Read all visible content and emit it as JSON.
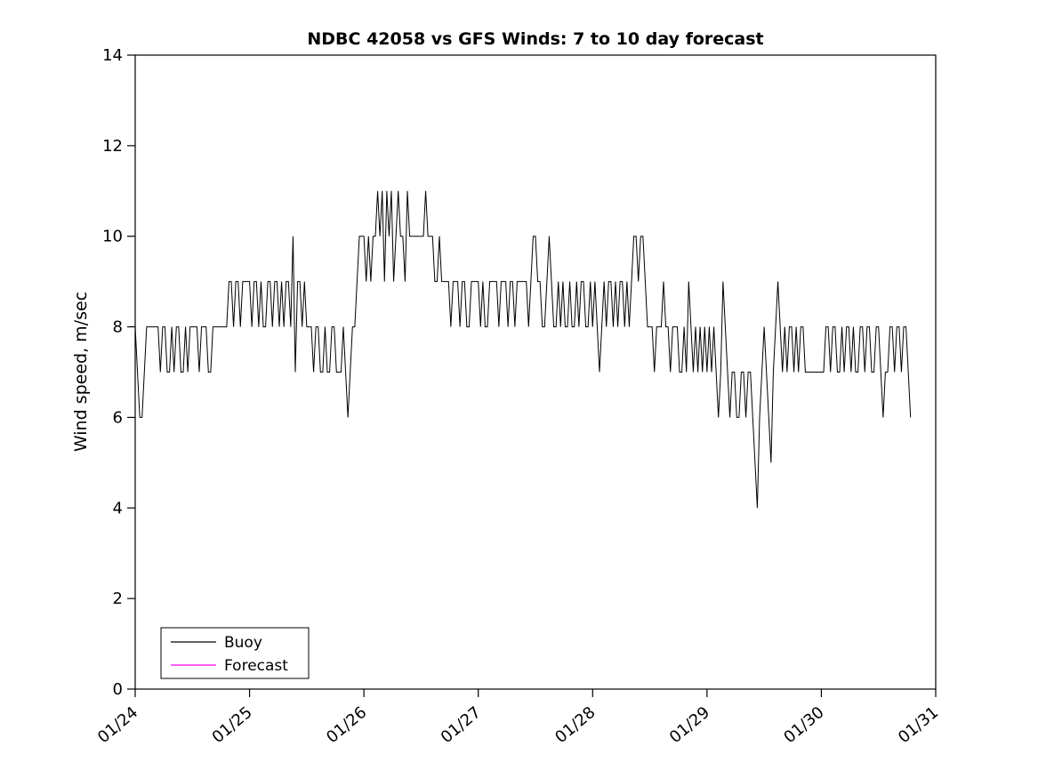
{
  "chart_data": {
    "type": "line",
    "title": "NDBC 42058 vs GFS Winds: 7 to 10 day forecast",
    "xlabel": "",
    "ylabel": "Wind speed, m/sec",
    "ylim": [
      0,
      14
    ],
    "yticks": [
      0,
      2,
      4,
      6,
      8,
      10,
      12,
      14
    ],
    "x_range_days": [
      0,
      7
    ],
    "xticks_days": [
      0,
      1,
      2,
      3,
      4,
      5,
      6,
      7
    ],
    "xtick_labels": [
      "01/24",
      "01/25",
      "01/26",
      "01/27",
      "01/28",
      "01/29",
      "01/30",
      "01/31"
    ],
    "grid": false,
    "legend_position": "lower-left",
    "legend": [
      {
        "label": "Buoy",
        "color": "#000000"
      },
      {
        "label": "Forecast",
        "color": "#ff00ff"
      }
    ],
    "series": [
      {
        "name": "Buoy",
        "color": "#000000",
        "t_start_days": 0,
        "dt_days": 0.02,
        "values": [
          8,
          7,
          6,
          6,
          7,
          8,
          8,
          8,
          8,
          8,
          8,
          7,
          8,
          8,
          7,
          7,
          8,
          7,
          8,
          8,
          7,
          7,
          8,
          7,
          8,
          8,
          8,
          8,
          7,
          8,
          8,
          8,
          7,
          7,
          8,
          8,
          8,
          8,
          8,
          8,
          8,
          9,
          9,
          8,
          9,
          9,
          8,
          9,
          9,
          9,
          9,
          8,
          9,
          9,
          8,
          9,
          8,
          8,
          9,
          9,
          8,
          9,
          9,
          8,
          9,
          8,
          9,
          9,
          8,
          10,
          7,
          9,
          9,
          8,
          9,
          8,
          8,
          8,
          7,
          8,
          8,
          7,
          7,
          8,
          7,
          7,
          8,
          8,
          7,
          7,
          7,
          8,
          7,
          6,
          7,
          8,
          8,
          9,
          10,
          10,
          10,
          9,
          10,
          9,
          10,
          10,
          11,
          10,
          11,
          9,
          11,
          10,
          11,
          9,
          10,
          11,
          10,
          10,
          9,
          11,
          10,
          10,
          10,
          10,
          10,
          10,
          10,
          11,
          10,
          10,
          10,
          9,
          9,
          10,
          9,
          9,
          9,
          9,
          8,
          9,
          9,
          9,
          8,
          9,
          9,
          8,
          8,
          9,
          9,
          9,
          9,
          8,
          9,
          8,
          8,
          9,
          9,
          9,
          9,
          8,
          9,
          9,
          9,
          8,
          9,
          9,
          8,
          9,
          9,
          9,
          9,
          9,
          8,
          9,
          10,
          10,
          9,
          9,
          8,
          8,
          9,
          10,
          9,
          8,
          8,
          9,
          8,
          9,
          8,
          8,
          9,
          8,
          8,
          9,
          8,
          9,
          9,
          8,
          8,
          9,
          8,
          9,
          8,
          7,
          8,
          9,
          8,
          9,
          9,
          8,
          9,
          8,
          9,
          9,
          8,
          9,
          8,
          9,
          10,
          10,
          9,
          10,
          10,
          9,
          8,
          8,
          8,
          7,
          8,
          8,
          8,
          9,
          8,
          8,
          7,
          8,
          8,
          8,
          7,
          7,
          8,
          7,
          9,
          8,
          7,
          8,
          7,
          8,
          7,
          8,
          7,
          8,
          7,
          8,
          7,
          6,
          7,
          9,
          8,
          7,
          6,
          7,
          7,
          6,
          6,
          7,
          7,
          6,
          7,
          7,
          6,
          5,
          4,
          6,
          7,
          8,
          7,
          6,
          5,
          7,
          8,
          9,
          8,
          7,
          8,
          7,
          8,
          8,
          7,
          8,
          7,
          8,
          8,
          7,
          7,
          7,
          7,
          7,
          7,
          7,
          7,
          7,
          8,
          8,
          7,
          8,
          8,
          7,
          7,
          8,
          7,
          8,
          8,
          7,
          8,
          7,
          7,
          8,
          8,
          7,
          8,
          8,
          7,
          7,
          8,
          8,
          7,
          6,
          7,
          7,
          8,
          8,
          7,
          8,
          8,
          7,
          8,
          8,
          7,
          6
        ]
      },
      {
        "name": "Forecast",
        "color": "#ff00ff",
        "t_start_days": 0,
        "dt_days": 0.02,
        "values": []
      }
    ]
  }
}
